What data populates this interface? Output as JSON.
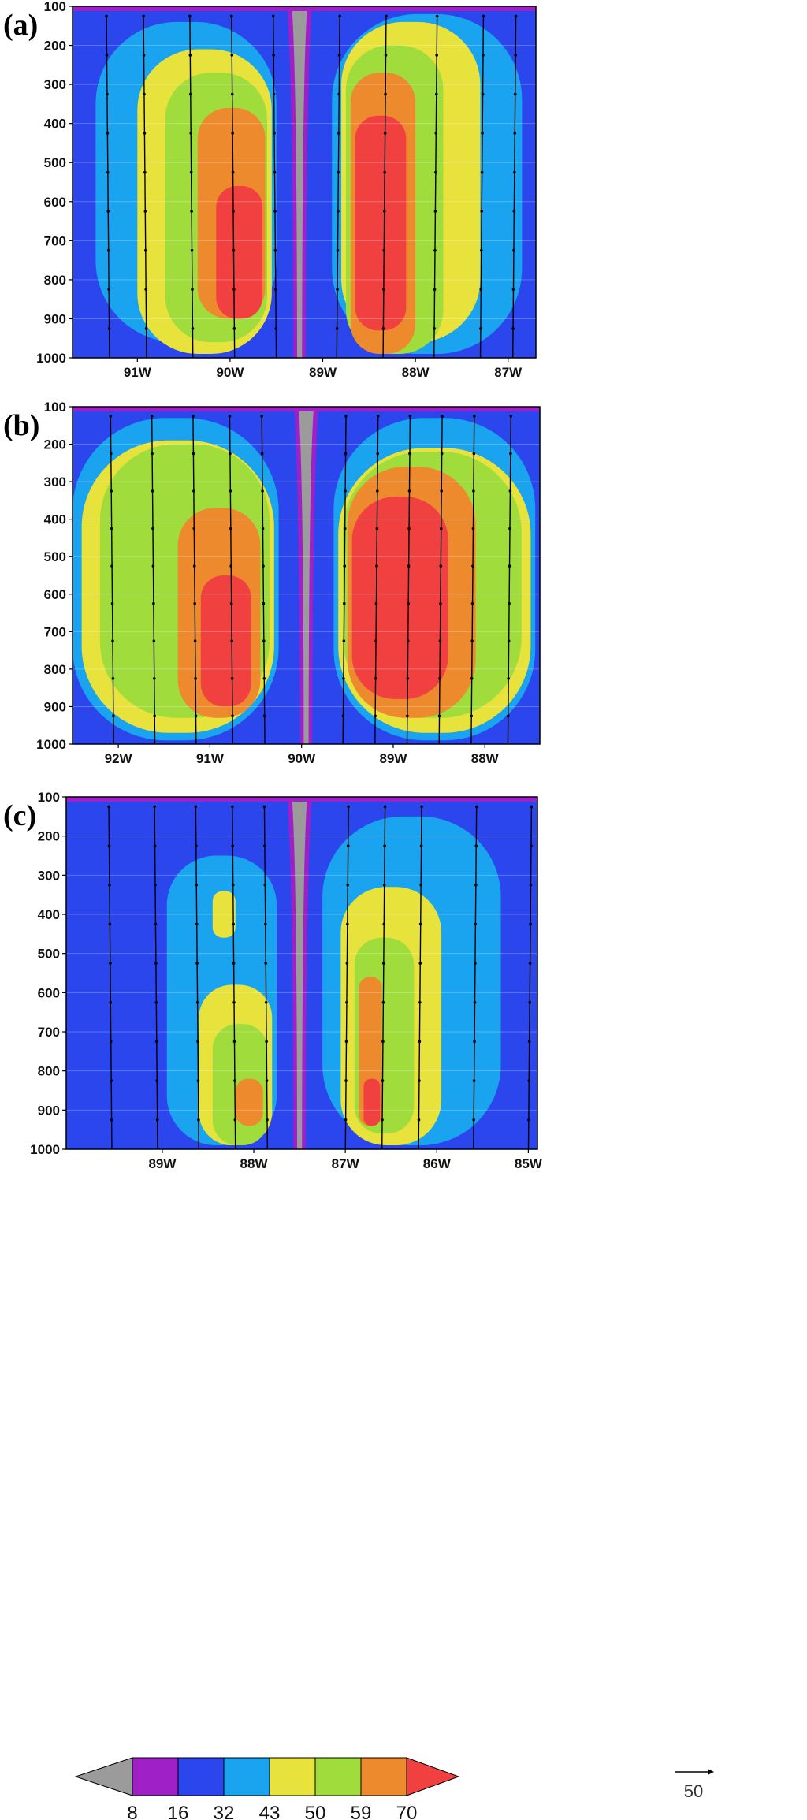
{
  "chart_data": [
    {
      "type": "heatmap",
      "panel_label": "(a)",
      "ylim": [
        100,
        1000
      ],
      "yticks": [
        "100",
        "200",
        "300",
        "400",
        "500",
        "600",
        "700",
        "800",
        "900",
        "1000"
      ],
      "xlim": [
        -91.7,
        -86.7
      ],
      "xticks": [
        {
          "value": -91,
          "label": "91W"
        },
        {
          "value": -90,
          "label": "90W"
        },
        {
          "value": -89,
          "label": "89W"
        },
        {
          "value": -88,
          "label": "88W"
        },
        {
          "value": -87,
          "label": "87W"
        }
      ],
      "center": -89.25,
      "regions": [
        {
          "level": 32,
          "x": [
            -91.45,
            -89.5
          ],
          "y": [
            140,
            960
          ]
        },
        {
          "level": 43,
          "x": [
            -91.0,
            -89.55
          ],
          "y": [
            210,
            990
          ]
        },
        {
          "level": 50,
          "x": [
            -90.7,
            -89.6
          ],
          "y": [
            270,
            960
          ]
        },
        {
          "level": 59,
          "x": [
            -90.35,
            -89.62
          ],
          "y": [
            360,
            900
          ]
        },
        {
          "level": 70,
          "x": [
            -90.15,
            -89.65
          ],
          "y": [
            560,
            900
          ]
        },
        {
          "level": 32,
          "x": [
            -88.9,
            -86.85
          ],
          "y": [
            120,
            990
          ]
        },
        {
          "level": 43,
          "x": [
            -88.8,
            -87.3
          ],
          "y": [
            140,
            960
          ]
        },
        {
          "level": 50,
          "x": [
            -88.75,
            -87.7
          ],
          "y": [
            200,
            990
          ]
        },
        {
          "level": 59,
          "x": [
            -88.7,
            -88.0
          ],
          "y": [
            270,
            990
          ]
        },
        {
          "level": 70,
          "x": [
            -88.65,
            -88.1
          ],
          "y": [
            380,
            930
          ]
        }
      ],
      "vector_columns": [
        -91.3,
        -90.9,
        -90.4,
        -89.95,
        -89.5,
        -88.85,
        -88.35,
        -87.8,
        -87.3,
        -86.95
      ]
    },
    {
      "type": "heatmap",
      "panel_label": "(b)",
      "ylim": [
        100,
        1000
      ],
      "yticks": [
        "100",
        "200",
        "300",
        "400",
        "500",
        "600",
        "700",
        "800",
        "900",
        "1000"
      ],
      "xlim": [
        -92.5,
        -87.4
      ],
      "xticks": [
        {
          "value": -92,
          "label": "92W"
        },
        {
          "value": -91,
          "label": "91W"
        },
        {
          "value": -90,
          "label": "90W"
        },
        {
          "value": -89,
          "label": "89W"
        },
        {
          "value": -88,
          "label": "88W"
        }
      ],
      "center": -89.95,
      "regions": [
        {
          "level": 32,
          "x": [
            -92.5,
            -90.25
          ],
          "y": [
            130,
            990
          ]
        },
        {
          "level": 43,
          "x": [
            -92.4,
            -90.3
          ],
          "y": [
            190,
            970
          ]
        },
        {
          "level": 50,
          "x": [
            -92.2,
            -90.35
          ],
          "y": [
            200,
            930
          ]
        },
        {
          "level": 59,
          "x": [
            -91.35,
            -90.45
          ],
          "y": [
            370,
            930
          ]
        },
        {
          "level": 70,
          "x": [
            -91.1,
            -90.55
          ],
          "y": [
            550,
            900
          ]
        },
        {
          "level": 32,
          "x": [
            -89.65,
            -87.45
          ],
          "y": [
            130,
            990
          ]
        },
        {
          "level": 43,
          "x": [
            -89.6,
            -87.5
          ],
          "y": [
            210,
            970
          ]
        },
        {
          "level": 50,
          "x": [
            -89.55,
            -87.6
          ],
          "y": [
            220,
            930
          ]
        },
        {
          "level": 59,
          "x": [
            -89.5,
            -88.1
          ],
          "y": [
            260,
            930
          ]
        },
        {
          "level": 70,
          "x": [
            -89.45,
            -88.4
          ],
          "y": [
            340,
            880
          ]
        }
      ],
      "vector_columns": [
        -92.05,
        -91.6,
        -91.15,
        -90.75,
        -90.4,
        -89.55,
        -89.2,
        -88.85,
        -88.5,
        -88.15,
        -87.75
      ]
    },
    {
      "type": "heatmap",
      "panel_label": "(c)",
      "ylim": [
        100,
        1000
      ],
      "yticks": [
        "100",
        "200",
        "300",
        "400",
        "500",
        "600",
        "700",
        "800",
        "900",
        "1000"
      ],
      "xlim": [
        -90.05,
        -84.9
      ],
      "xticks": [
        {
          "value": -89,
          "label": "89W"
        },
        {
          "value": -88,
          "label": "88W"
        },
        {
          "value": -87,
          "label": "87W"
        },
        {
          "value": -86,
          "label": "86W"
        },
        {
          "value": -85,
          "label": "85W"
        }
      ],
      "center": -87.5,
      "regions": [
        {
          "level": 32,
          "x": [
            -88.95,
            -87.75
          ],
          "y": [
            250,
            990
          ]
        },
        {
          "level": 43,
          "x": [
            -88.6,
            -87.8
          ],
          "y": [
            580,
            990
          ]
        },
        {
          "level": 43,
          "x": [
            -88.45,
            -88.2
          ],
          "y": [
            340,
            460
          ]
        },
        {
          "level": 50,
          "x": [
            -88.45,
            -87.85
          ],
          "y": [
            680,
            990
          ]
        },
        {
          "level": 59,
          "x": [
            -88.2,
            -87.9
          ],
          "y": [
            820,
            940
          ]
        },
        {
          "level": 32,
          "x": [
            -87.25,
            -85.3
          ],
          "y": [
            150,
            990
          ]
        },
        {
          "level": 43,
          "x": [
            -87.05,
            -85.95
          ],
          "y": [
            330,
            990
          ]
        },
        {
          "level": 50,
          "x": [
            -86.9,
            -86.25
          ],
          "y": [
            460,
            960
          ]
        },
        {
          "level": 59,
          "x": [
            -86.85,
            -86.6
          ],
          "y": [
            560,
            940
          ]
        },
        {
          "level": 70,
          "x": [
            -86.8,
            -86.62
          ],
          "y": [
            820,
            940
          ]
        }
      ],
      "vector_columns": [
        -89.55,
        -89.05,
        -88.6,
        -88.2,
        -87.85,
        -87.0,
        -86.6,
        -86.2,
        -85.6,
        -85.0
      ]
    }
  ],
  "colorbar": {
    "levels": [
      {
        "label": "8",
        "color": "#9b9b9b"
      },
      {
        "label": "16",
        "color": "#a020c8"
      },
      {
        "label": "32",
        "color": "#2a46ec"
      },
      {
        "label": "43",
        "color": "#1aa3ee"
      },
      {
        "label": "50",
        "color": "#e8e23c"
      },
      {
        "label": "59",
        "color": "#a0dc3c"
      },
      {
        "label": "70",
        "color": "#ee8a2e"
      }
    ],
    "top_color": "#f04040",
    "background_color": "#2a46ec",
    "reference_vector_label": "50"
  }
}
